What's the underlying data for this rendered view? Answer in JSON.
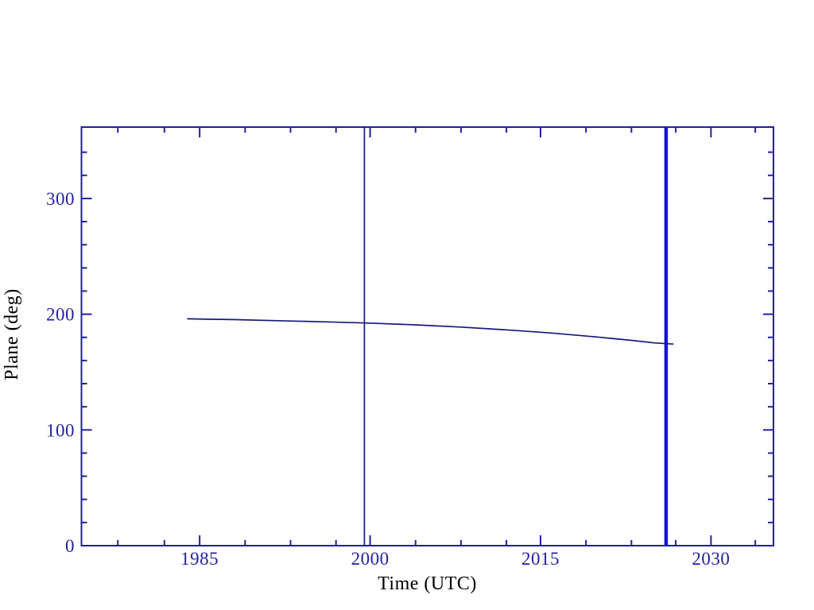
{
  "chart_data": {
    "type": "line",
    "title": "",
    "xlabel": "Time (UTC)",
    "ylabel": "Plane (deg)",
    "xlim": [
      1974.6,
      2035.5
    ],
    "ylim": [
      0,
      361.7
    ],
    "grid": false,
    "legend": "none",
    "x_major_ticks": [
      1985,
      2000,
      2015,
      2030
    ],
    "x_major_tick_labels": [
      "1985",
      "2000",
      "2015",
      "2030"
    ],
    "x_minor_ticks": [
      1977.8,
      1981.9,
      1989.0,
      1993.0,
      1997.0,
      2004.0,
      2008.0,
      2012.0,
      2019.0,
      2023.0,
      2026.9,
      2033.9
    ],
    "y_major_ticks": [
      0,
      100,
      200,
      300
    ],
    "y_major_tick_labels": [
      "0",
      "100",
      "200",
      "300"
    ],
    "y_minor_step": 20,
    "series": [
      {
        "name": "plane-angle-vs-time",
        "x": [
          1983.9,
          1988.0,
          1992.0,
          1996.0,
          2000.0,
          2004.0,
          2008.0,
          2012.0,
          2016.0,
          2020.0,
          2023.0,
          2025.0,
          2026.7
        ],
        "y": [
          196.0,
          195.3,
          194.4,
          193.4,
          192.3,
          190.8,
          188.9,
          186.5,
          183.7,
          180.3,
          177.4,
          175.2,
          174.2
        ]
      }
    ],
    "vlines": [
      {
        "name": "thin-epoch-line",
        "x": 1999.5,
        "weight": "thin"
      },
      {
        "name": "thick-epoch-line",
        "x": 2026.05,
        "weight": "thick"
      }
    ],
    "colors": {
      "axis": "#20209d",
      "text": "#2222a2",
      "curve": "#16167f",
      "thin_line": "#16167f",
      "thick_line": "#1414cf",
      "background": "#ffffff"
    }
  }
}
